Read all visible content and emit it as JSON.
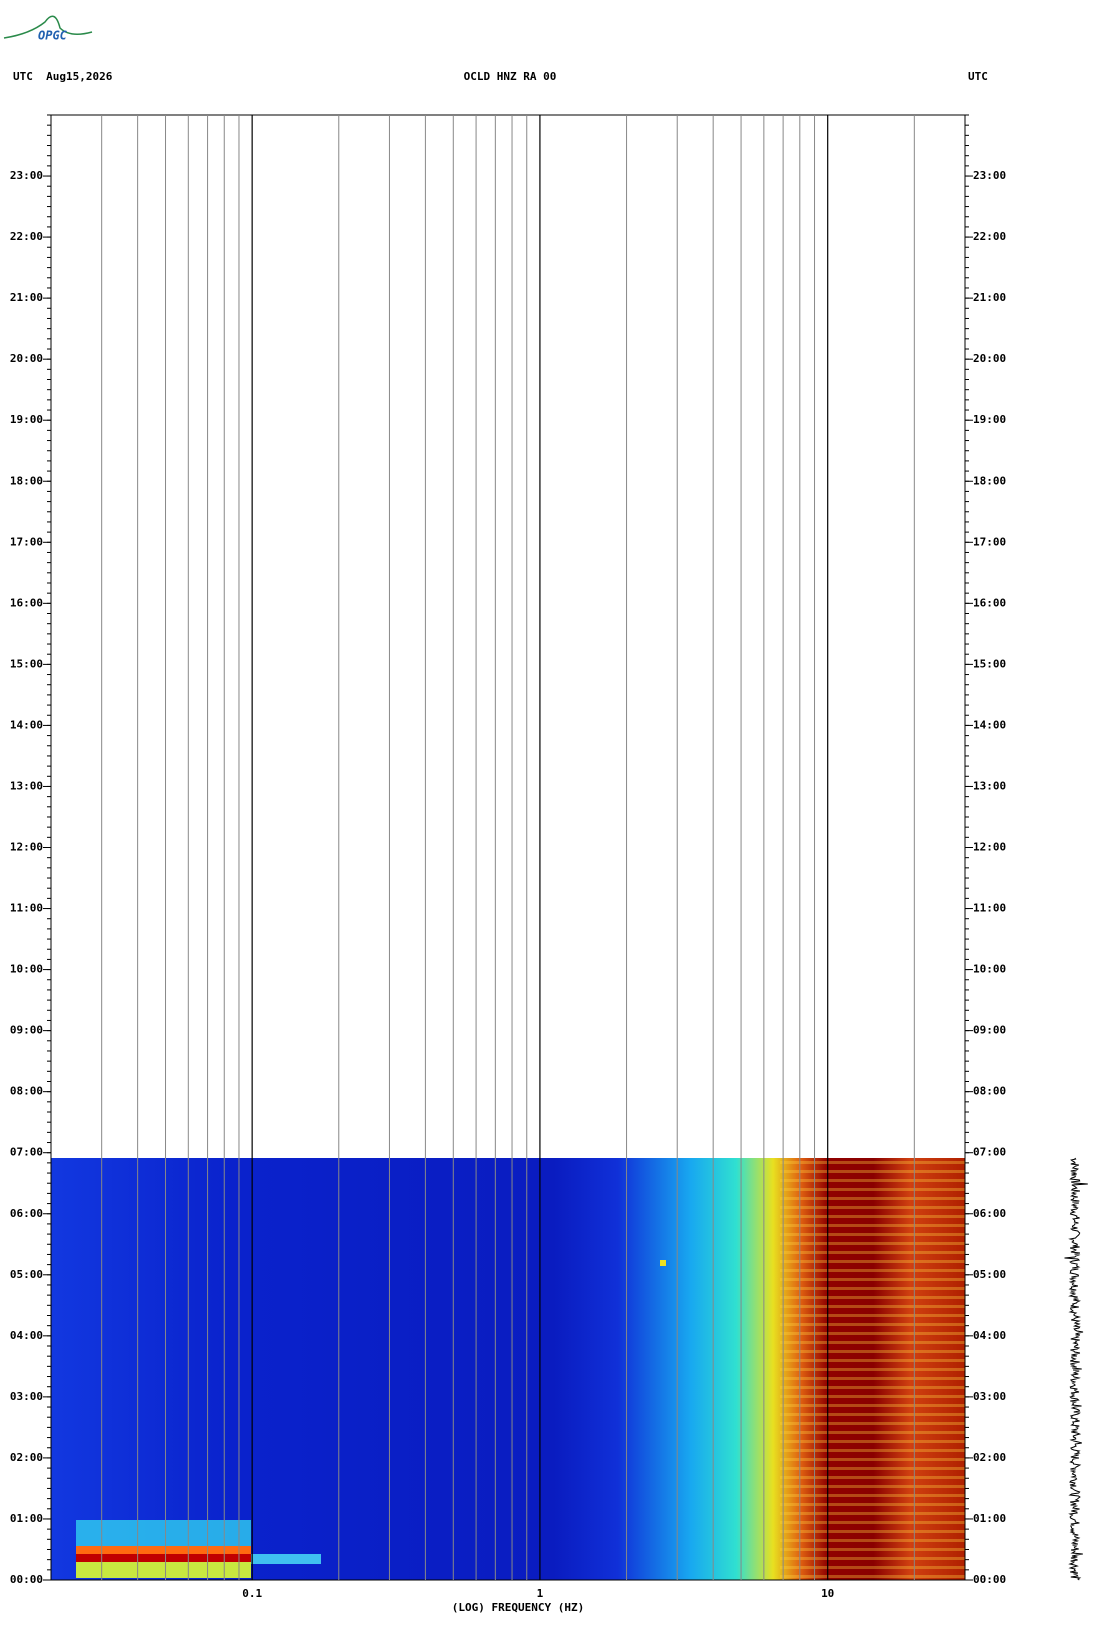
{
  "chart_data": {
    "type": "spectrogram",
    "logo": "OPGC",
    "title": "OCLD HNZ RA 00",
    "left_header": "UTC  Aug15,2026",
    "right_header": "UTC",
    "xlabel": "(LOG) FREQUENCY (HZ)",
    "xscale": "log",
    "xlim": [
      0.02,
      30
    ],
    "xticks": [
      0.1,
      1,
      10
    ],
    "xminorticks": [
      0.03,
      0.04,
      0.05,
      0.06,
      0.07,
      0.08,
      0.09,
      0.2,
      0.3,
      0.4,
      0.5,
      0.6,
      0.7,
      0.8,
      0.9,
      2,
      3,
      4,
      5,
      6,
      7,
      8,
      9,
      20
    ],
    "ylim": [
      0,
      24
    ],
    "yticks": [
      {
        "value": 0,
        "label": "00:00"
      },
      {
        "value": 1,
        "label": "01:00"
      },
      {
        "value": 2,
        "label": "02:00"
      },
      {
        "value": 3,
        "label": "03:00"
      },
      {
        "value": 4,
        "label": "04:00"
      },
      {
        "value": 5,
        "label": "05:00"
      },
      {
        "value": 6,
        "label": "06:00"
      },
      {
        "value": 7,
        "label": "07:00"
      },
      {
        "value": 8,
        "label": "08:00"
      },
      {
        "value": 9,
        "label": "09:00"
      },
      {
        "value": 10,
        "label": "10:00"
      },
      {
        "value": 11,
        "label": "11:00"
      },
      {
        "value": 12,
        "label": "12:00"
      },
      {
        "value": 13,
        "label": "13:00"
      },
      {
        "value": 14,
        "label": "14:00"
      },
      {
        "value": 15,
        "label": "15:00"
      },
      {
        "value": 16,
        "label": "16:00"
      },
      {
        "value": 17,
        "label": "17:00"
      },
      {
        "value": 18,
        "label": "18:00"
      },
      {
        "value": 19,
        "label": "19:00"
      },
      {
        "value": 20,
        "label": "20:00"
      },
      {
        "value": 21,
        "label": "21:00"
      },
      {
        "value": 22,
        "label": "22:00"
      },
      {
        "value": 23,
        "label": "23:00"
      }
    ]
  }
}
